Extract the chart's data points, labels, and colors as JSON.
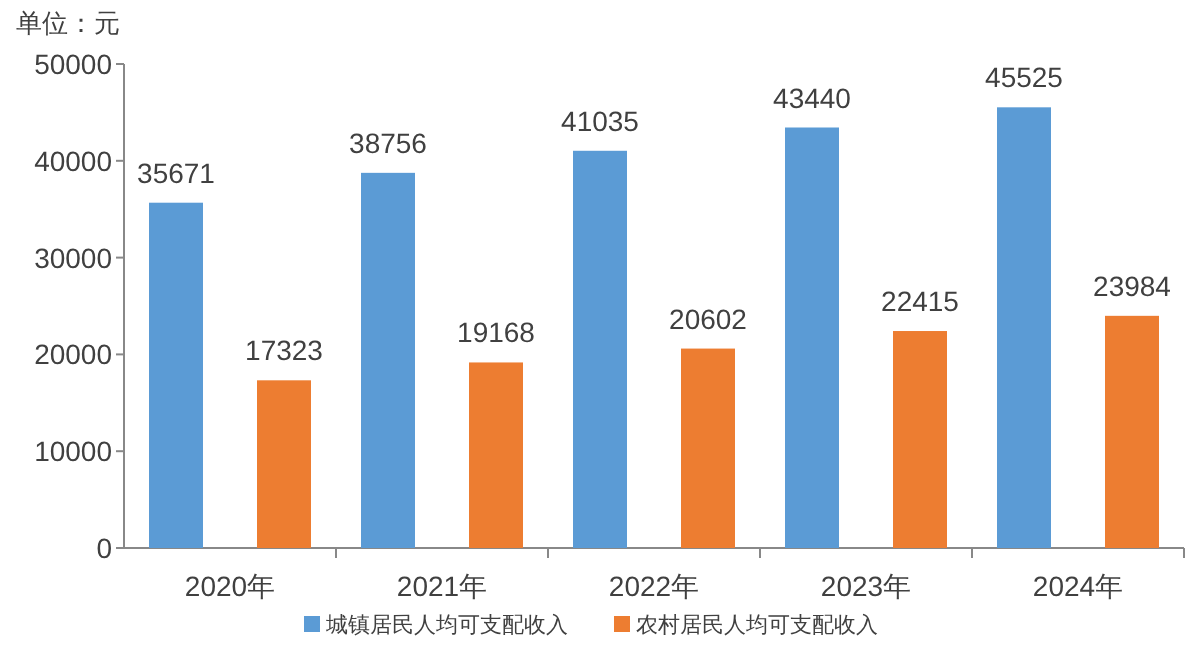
{
  "chart_data": {
    "type": "bar",
    "categories": [
      "2020年",
      "2021年",
      "2022年",
      "2023年",
      "2024年"
    ],
    "series": [
      {
        "name": "城镇居民人均可支配收入",
        "color": "#5b9bd5",
        "values": [
          35671,
          38756,
          41035,
          43440,
          45525
        ]
      },
      {
        "name": "农村居民人均可支配收入",
        "color": "#ed7d31",
        "values": [
          17323,
          19168,
          20602,
          22415,
          23984
        ]
      }
    ],
    "ylim": [
      0,
      50000
    ],
    "yticks": [
      0,
      10000,
      20000,
      30000,
      40000,
      50000
    ],
    "grid": false,
    "legend": "bottom",
    "data_labels": true,
    "annotations": [
      "单位：元"
    ]
  }
}
